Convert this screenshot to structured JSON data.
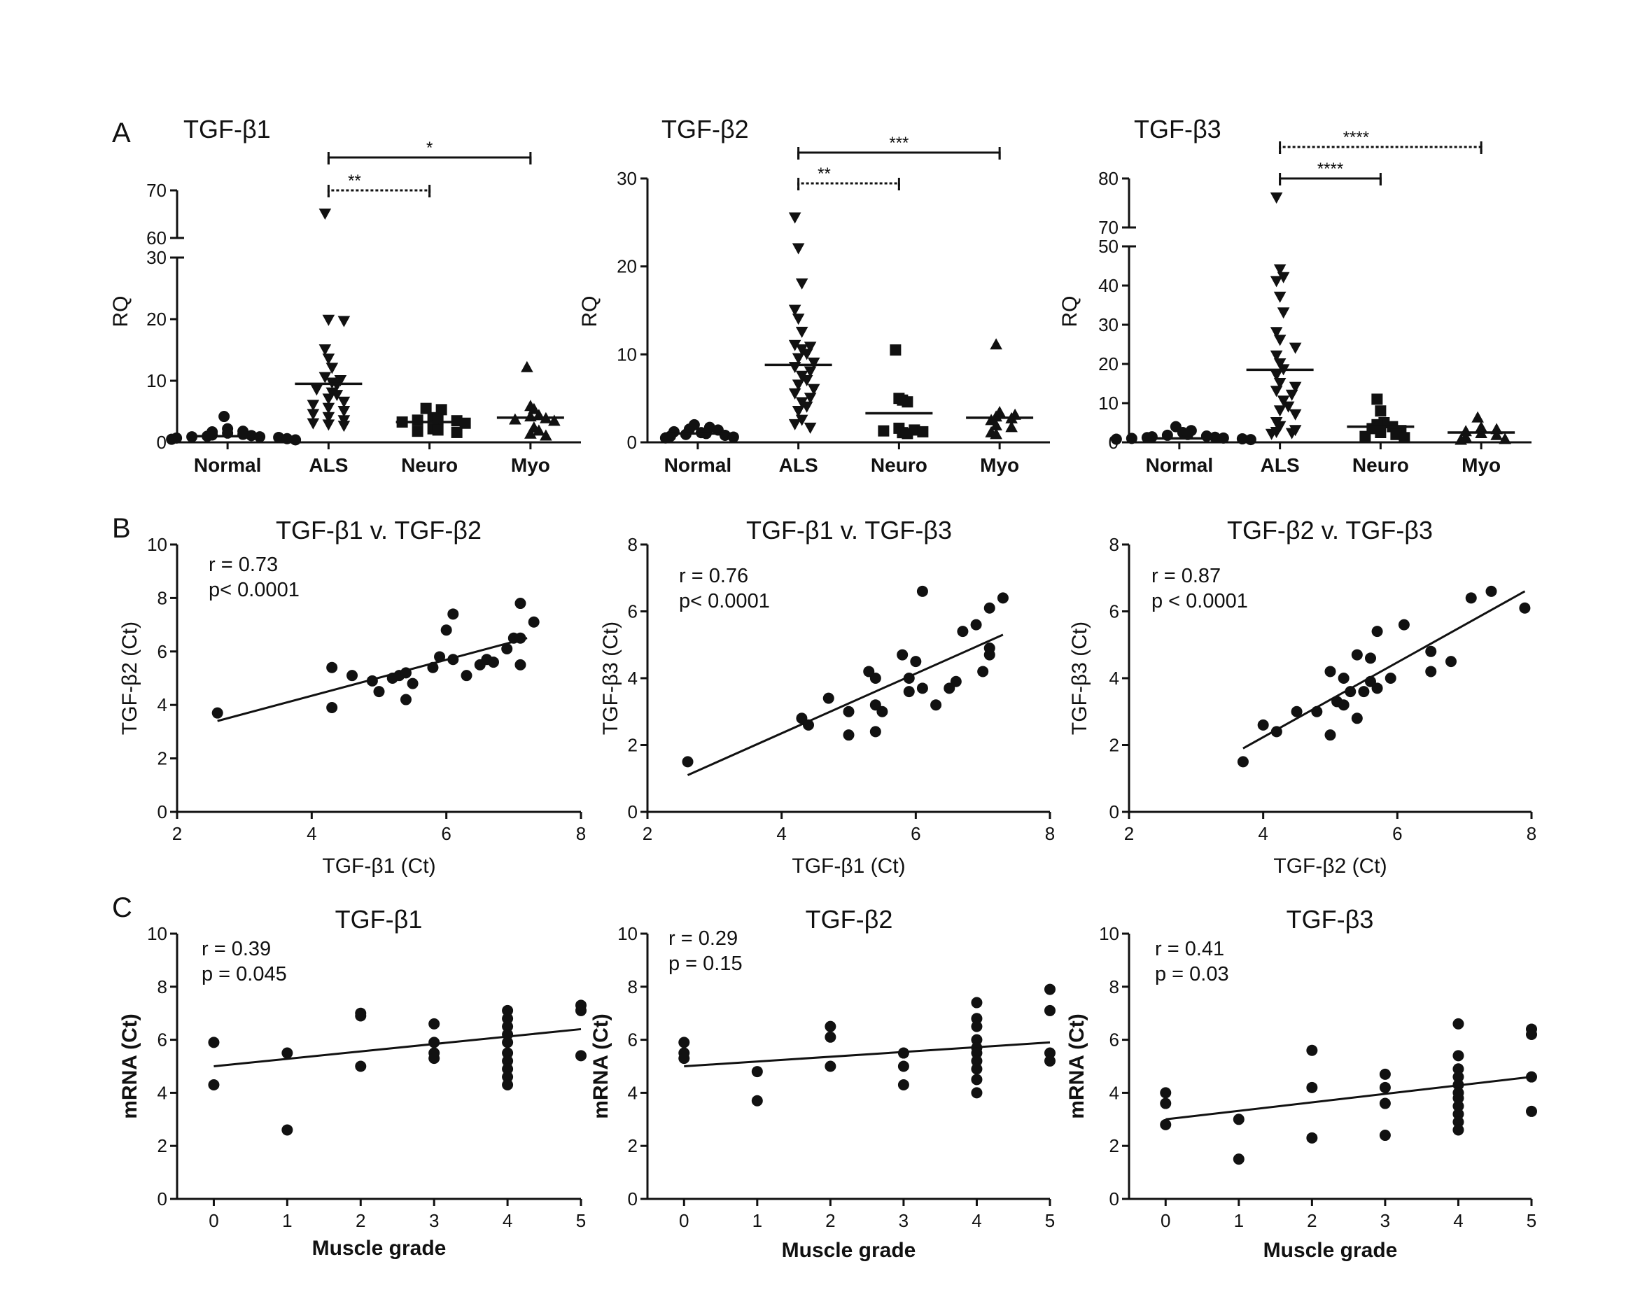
{
  "figure": {
    "panel_labels": [
      "A",
      "B",
      "C"
    ]
  },
  "chart_data": [
    {
      "type": "scatter",
      "subtype": "dot-plot",
      "title": "TGF-β1",
      "ylabel": "RQ",
      "categories": [
        "Normal",
        "ALS",
        "Neuro",
        "Myo"
      ],
      "markers": [
        "circle",
        "triangle-down",
        "square",
        "triangle-up"
      ],
      "y_axis": {
        "broken": true,
        "lower": {
          "range": [
            0,
            30
          ],
          "ticks": [
            0,
            10,
            20,
            30
          ]
        },
        "upper": {
          "range": [
            60,
            70
          ],
          "ticks": [
            60,
            70
          ]
        }
      },
      "medians": [
        1.0,
        9.5,
        3.3,
        4.0
      ],
      "groups": [
        {
          "name": "Normal",
          "values": [
            4.2,
            2.2,
            1.8,
            1.7,
            1.5,
            1.3,
            1.2,
            1.1,
            1.0,
            0.9,
            0.9,
            0.8,
            0.7,
            0.6,
            0.5,
            0.4
          ]
        },
        {
          "name": "ALS",
          "values": [
            65,
            19.8,
            19.6,
            15.0,
            13.5,
            12.0,
            10.5,
            10.0,
            9.6,
            9.2,
            8.5,
            8.0,
            7.6,
            7.0,
            6.5,
            6.0,
            5.5,
            5.0,
            4.5,
            4.0,
            3.5,
            3.0,
            2.8,
            2.6
          ]
        },
        {
          "name": "Neuro",
          "values": [
            5.5,
            5.3,
            4.0,
            3.8,
            3.6,
            3.5,
            3.3,
            3.1,
            2.2,
            2.0,
            1.8,
            1.6
          ]
        },
        {
          "name": "Myo",
          "values": [
            12.3,
            6.0,
            5.5,
            4.5,
            4.3,
            4.0,
            3.8,
            3.6,
            2.5,
            2.0,
            1.5,
            1.2
          ]
        }
      ],
      "significance": [
        {
          "label": "**",
          "from": "ALS",
          "to": "Neuro",
          "style": "dashed"
        },
        {
          "label": "*",
          "from": "ALS",
          "to": "Myo",
          "style": "solid"
        }
      ]
    },
    {
      "type": "scatter",
      "subtype": "dot-plot",
      "title": "TGF-β2",
      "ylabel": "RQ",
      "categories": [
        "Normal",
        "ALS",
        "Neuro",
        "Myo"
      ],
      "markers": [
        "circle",
        "triangle-down",
        "square",
        "triangle-up"
      ],
      "ylim": [
        0,
        30
      ],
      "yticks": [
        0,
        10,
        20,
        30
      ],
      "medians": [
        1.0,
        8.8,
        3.3,
        2.8
      ],
      "groups": [
        {
          "name": "Normal",
          "values": [
            2.0,
            1.7,
            1.5,
            1.4,
            1.2,
            1.1,
            1.0,
            0.9,
            0.8,
            0.7,
            0.6,
            0.5
          ]
        },
        {
          "name": "ALS",
          "values": [
            25.5,
            22.0,
            18.0,
            15.0,
            14.0,
            12.5,
            11.0,
            10.8,
            10.5,
            10.0,
            9.5,
            9.0,
            8.5,
            8.0,
            7.5,
            7.0,
            6.5,
            6.0,
            5.5,
            5.0,
            4.5,
            4.0,
            3.5,
            2.5,
            2.0,
            1.6
          ]
        },
        {
          "name": "Neuro",
          "values": [
            10.5,
            5.0,
            4.8,
            4.6,
            1.6,
            1.4,
            1.3,
            1.2,
            1.1,
            1.0
          ]
        },
        {
          "name": "Myo",
          "values": [
            11.2,
            3.5,
            3.2,
            3.0,
            2.8,
            2.6,
            2.0,
            1.8,
            1.2,
            1.0
          ]
        }
      ],
      "significance": [
        {
          "label": "**",
          "from": "ALS",
          "to": "Neuro",
          "style": "dashed"
        },
        {
          "label": "***",
          "from": "ALS",
          "to": "Myo",
          "style": "solid"
        }
      ]
    },
    {
      "type": "scatter",
      "subtype": "dot-plot",
      "title": "TGF-β3",
      "ylabel": "RQ",
      "categories": [
        "Normal",
        "ALS",
        "Neuro",
        "Myo"
      ],
      "markers": [
        "circle",
        "triangle-down",
        "square",
        "triangle-up"
      ],
      "y_axis": {
        "broken": true,
        "lower": {
          "range": [
            0,
            50
          ],
          "ticks": [
            0,
            10,
            20,
            30,
            40,
            50
          ]
        },
        "upper": {
          "range": [
            70,
            80
          ],
          "ticks": [
            70,
            80
          ]
        }
      },
      "medians": [
        1.0,
        18.5,
        4.0,
        2.5
      ],
      "groups": [
        {
          "name": "Normal",
          "values": [
            4.0,
            3.0,
            2.5,
            2.0,
            1.8,
            1.6,
            1.4,
            1.3,
            1.2,
            1.1,
            1.0,
            0.9,
            0.8,
            0.7
          ]
        },
        {
          "name": "ALS",
          "values": [
            76,
            44,
            42,
            41,
            37,
            33,
            28,
            26,
            24,
            22,
            20,
            18.5,
            17,
            15,
            14,
            13,
            12,
            10.5,
            9,
            8,
            7,
            5,
            4,
            3,
            2.5,
            2.2,
            2.0
          ]
        },
        {
          "name": "Neuro",
          "values": [
            11.0,
            8.0,
            5.0,
            4.5,
            4.0,
            3.5,
            3.0,
            2.5,
            2.0,
            1.5,
            1.2
          ]
        },
        {
          "name": "Myo",
          "values": [
            6.5,
            4.0,
            3.5,
            3.0,
            2.5,
            2.0,
            1.5,
            1.0,
            0.8
          ]
        }
      ],
      "significance": [
        {
          "label": "****",
          "from": "ALS",
          "to": "Neuro",
          "style": "solid"
        },
        {
          "label": "****",
          "from": "ALS",
          "to": "Myo",
          "style": "dashed"
        }
      ]
    },
    {
      "type": "scatter",
      "title": "TGF-β1 v. TGF-β2",
      "xlabel": "TGF-β1 (Ct)",
      "ylabel": "TGF-β2 (Ct)",
      "xlim": [
        2,
        8
      ],
      "ylim": [
        0,
        10
      ],
      "xticks": [
        2,
        4,
        6,
        8
      ],
      "yticks": [
        0,
        2,
        4,
        6,
        8,
        10
      ],
      "stats": [
        "r = 0.73",
        "p< 0.0001"
      ],
      "fit": {
        "x": [
          2.6,
          7.2
        ],
        "y": [
          3.4,
          6.5
        ]
      },
      "points": [
        [
          2.6,
          3.7
        ],
        [
          4.3,
          5.4
        ],
        [
          4.3,
          3.9
        ],
        [
          4.6,
          5.1
        ],
        [
          4.9,
          4.9
        ],
        [
          5.0,
          4.5
        ],
        [
          5.2,
          5.0
        ],
        [
          5.3,
          5.1
        ],
        [
          5.4,
          4.2
        ],
        [
          5.4,
          5.2
        ],
        [
          5.5,
          4.8
        ],
        [
          5.8,
          5.4
        ],
        [
          5.9,
          5.8
        ],
        [
          6.0,
          6.8
        ],
        [
          6.1,
          7.4
        ],
        [
          6.1,
          5.7
        ],
        [
          6.3,
          5.1
        ],
        [
          6.5,
          5.5
        ],
        [
          6.6,
          5.7
        ],
        [
          6.7,
          5.6
        ],
        [
          6.9,
          6.1
        ],
        [
          7.0,
          6.5
        ],
        [
          7.1,
          6.5
        ],
        [
          7.1,
          7.8
        ],
        [
          7.1,
          5.5
        ],
        [
          7.3,
          7.1
        ]
      ]
    },
    {
      "type": "scatter",
      "title": "TGF-β1 v. TGF-β3",
      "xlabel": "TGF-β1 (Ct)",
      "ylabel": "TGF-β3 (Ct)",
      "xlim": [
        2,
        8
      ],
      "ylim": [
        0,
        8
      ],
      "xticks": [
        2,
        4,
        6,
        8
      ],
      "yticks": [
        0,
        2,
        4,
        6,
        8
      ],
      "stats": [
        "r = 0.76",
        "p< 0.0001"
      ],
      "fit": {
        "x": [
          2.6,
          7.3
        ],
        "y": [
          1.1,
          5.3
        ]
      },
      "points": [
        [
          2.6,
          1.5
        ],
        [
          4.3,
          2.8
        ],
        [
          4.4,
          2.6
        ],
        [
          4.7,
          3.4
        ],
        [
          5.0,
          2.3
        ],
        [
          5.0,
          3.0
        ],
        [
          5.3,
          4.2
        ],
        [
          5.4,
          3.2
        ],
        [
          5.4,
          2.4
        ],
        [
          5.4,
          4.0
        ],
        [
          5.5,
          3.0
        ],
        [
          5.8,
          4.7
        ],
        [
          5.9,
          3.6
        ],
        [
          5.9,
          4.0
        ],
        [
          6.0,
          4.5
        ],
        [
          6.1,
          6.6
        ],
        [
          6.1,
          3.7
        ],
        [
          6.3,
          3.2
        ],
        [
          6.5,
          3.7
        ],
        [
          6.6,
          3.9
        ],
        [
          6.7,
          5.4
        ],
        [
          6.9,
          5.6
        ],
        [
          7.0,
          4.2
        ],
        [
          7.1,
          4.7
        ],
        [
          7.1,
          4.9
        ],
        [
          7.1,
          6.1
        ],
        [
          7.3,
          6.4
        ]
      ]
    },
    {
      "type": "scatter",
      "title": "TGF-β2 v. TGF-β3",
      "xlabel": "TGF-β2 (Ct)",
      "ylabel": "TGF-β3 (Ct)",
      "xlim": [
        2,
        8
      ],
      "ylim": [
        0,
        8
      ],
      "xticks": [
        2,
        4,
        6,
        8
      ],
      "yticks": [
        0,
        2,
        4,
        6,
        8
      ],
      "stats": [
        "r = 0.87",
        "p < 0.0001"
      ],
      "fit": {
        "x": [
          3.7,
          7.9
        ],
        "y": [
          1.9,
          6.6
        ]
      },
      "points": [
        [
          3.7,
          1.5
        ],
        [
          4.0,
          2.6
        ],
        [
          4.2,
          2.4
        ],
        [
          4.5,
          3.0
        ],
        [
          4.8,
          3.0
        ],
        [
          5.0,
          2.3
        ],
        [
          5.0,
          4.2
        ],
        [
          5.1,
          3.3
        ],
        [
          5.2,
          3.2
        ],
        [
          5.2,
          4.0
        ],
        [
          5.3,
          3.6
        ],
        [
          5.4,
          4.7
        ],
        [
          5.4,
          2.8
        ],
        [
          5.5,
          3.6
        ],
        [
          5.6,
          4.6
        ],
        [
          5.6,
          3.9
        ],
        [
          5.7,
          3.7
        ],
        [
          5.7,
          5.4
        ],
        [
          5.9,
          4.0
        ],
        [
          6.1,
          5.6
        ],
        [
          6.5,
          4.8
        ],
        [
          6.5,
          4.2
        ],
        [
          6.8,
          4.5
        ],
        [
          7.1,
          6.4
        ],
        [
          7.4,
          6.6
        ],
        [
          7.9,
          6.1
        ]
      ]
    },
    {
      "type": "scatter",
      "title": "TGF-β1",
      "xlabel": "Muscle grade",
      "ylabel": "mRNA (Ct)",
      "xlim": [
        -0.5,
        5.0
      ],
      "ylim": [
        0,
        10
      ],
      "xticks": [
        0,
        1,
        2,
        3,
        4,
        5
      ],
      "yticks": [
        0,
        2,
        4,
        6,
        8,
        10
      ],
      "stats": [
        "r = 0.39",
        "p = 0.045"
      ],
      "fit": {
        "x": [
          0,
          5
        ],
        "y": [
          5.0,
          6.4
        ]
      },
      "points": [
        [
          0,
          5.9
        ],
        [
          0,
          4.3
        ],
        [
          1,
          5.5
        ],
        [
          1,
          2.6
        ],
        [
          2,
          7.0
        ],
        [
          2,
          6.9
        ],
        [
          2,
          5.0
        ],
        [
          3,
          6.6
        ],
        [
          3,
          5.9
        ],
        [
          3,
          5.5
        ],
        [
          3,
          5.3
        ],
        [
          4,
          7.1
        ],
        [
          4,
          6.8
        ],
        [
          4,
          6.5
        ],
        [
          4,
          6.2
        ],
        [
          4,
          5.9
        ],
        [
          4,
          5.5
        ],
        [
          4,
          5.2
        ],
        [
          4,
          4.9
        ],
        [
          4,
          4.6
        ],
        [
          4,
          4.3
        ],
        [
          5,
          7.3
        ],
        [
          5,
          7.1
        ],
        [
          5,
          5.4
        ]
      ]
    },
    {
      "type": "scatter",
      "title": "TGF-β2",
      "xlabel": "Muscle grade",
      "ylabel": "mRNA (Ct)",
      "xlim": [
        -0.5,
        5.0
      ],
      "ylim": [
        0,
        10
      ],
      "xticks": [
        0,
        1,
        2,
        3,
        4,
        5
      ],
      "yticks": [
        0,
        2,
        4,
        6,
        8,
        10
      ],
      "stats": [
        "r = 0.29",
        "p = 0.15"
      ],
      "fit": {
        "x": [
          0,
          5
        ],
        "y": [
          5.0,
          5.9
        ]
      },
      "points": [
        [
          0,
          5.9
        ],
        [
          0,
          5.5
        ],
        [
          0,
          5.3
        ],
        [
          1,
          4.8
        ],
        [
          1,
          3.7
        ],
        [
          2,
          6.5
        ],
        [
          2,
          6.1
        ],
        [
          2,
          5.0
        ],
        [
          3,
          5.5
        ],
        [
          3,
          5.0
        ],
        [
          3,
          4.3
        ],
        [
          4,
          7.4
        ],
        [
          4,
          6.8
        ],
        [
          4,
          6.5
        ],
        [
          4,
          6.0
        ],
        [
          4,
          5.7
        ],
        [
          4,
          5.5
        ],
        [
          4,
          5.2
        ],
        [
          4,
          4.9
        ],
        [
          4,
          4.5
        ],
        [
          4,
          4.0
        ],
        [
          5,
          7.9
        ],
        [
          5,
          7.1
        ],
        [
          5,
          5.5
        ],
        [
          5,
          5.2
        ]
      ]
    },
    {
      "type": "scatter",
      "title": "TGF-β3",
      "xlabel": "Muscle grade",
      "ylabel": "mRNA (Ct)",
      "xlim": [
        -0.5,
        5.0
      ],
      "ylim": [
        0,
        10
      ],
      "xticks": [
        0,
        1,
        2,
        3,
        4,
        5
      ],
      "yticks": [
        0,
        2,
        4,
        6,
        8,
        10
      ],
      "stats": [
        "r  = 0.41",
        "p = 0.03"
      ],
      "fit": {
        "x": [
          0,
          5
        ],
        "y": [
          3.0,
          4.6
        ]
      },
      "points": [
        [
          0,
          4.0
        ],
        [
          0,
          3.6
        ],
        [
          0,
          2.8
        ],
        [
          1,
          3.0
        ],
        [
          1,
          1.5
        ],
        [
          2,
          5.6
        ],
        [
          2,
          4.2
        ],
        [
          2,
          2.3
        ],
        [
          3,
          4.7
        ],
        [
          3,
          4.2
        ],
        [
          3,
          3.6
        ],
        [
          3,
          2.4
        ],
        [
          4,
          6.6
        ],
        [
          4,
          5.4
        ],
        [
          4,
          4.9
        ],
        [
          4,
          4.6
        ],
        [
          4,
          4.3
        ],
        [
          4,
          4.0
        ],
        [
          4,
          3.8
        ],
        [
          4,
          3.5
        ],
        [
          4,
          3.2
        ],
        [
          4,
          2.9
        ],
        [
          4,
          2.6
        ],
        [
          5,
          6.4
        ],
        [
          5,
          6.2
        ],
        [
          5,
          4.6
        ],
        [
          5,
          3.3
        ]
      ]
    }
  ]
}
